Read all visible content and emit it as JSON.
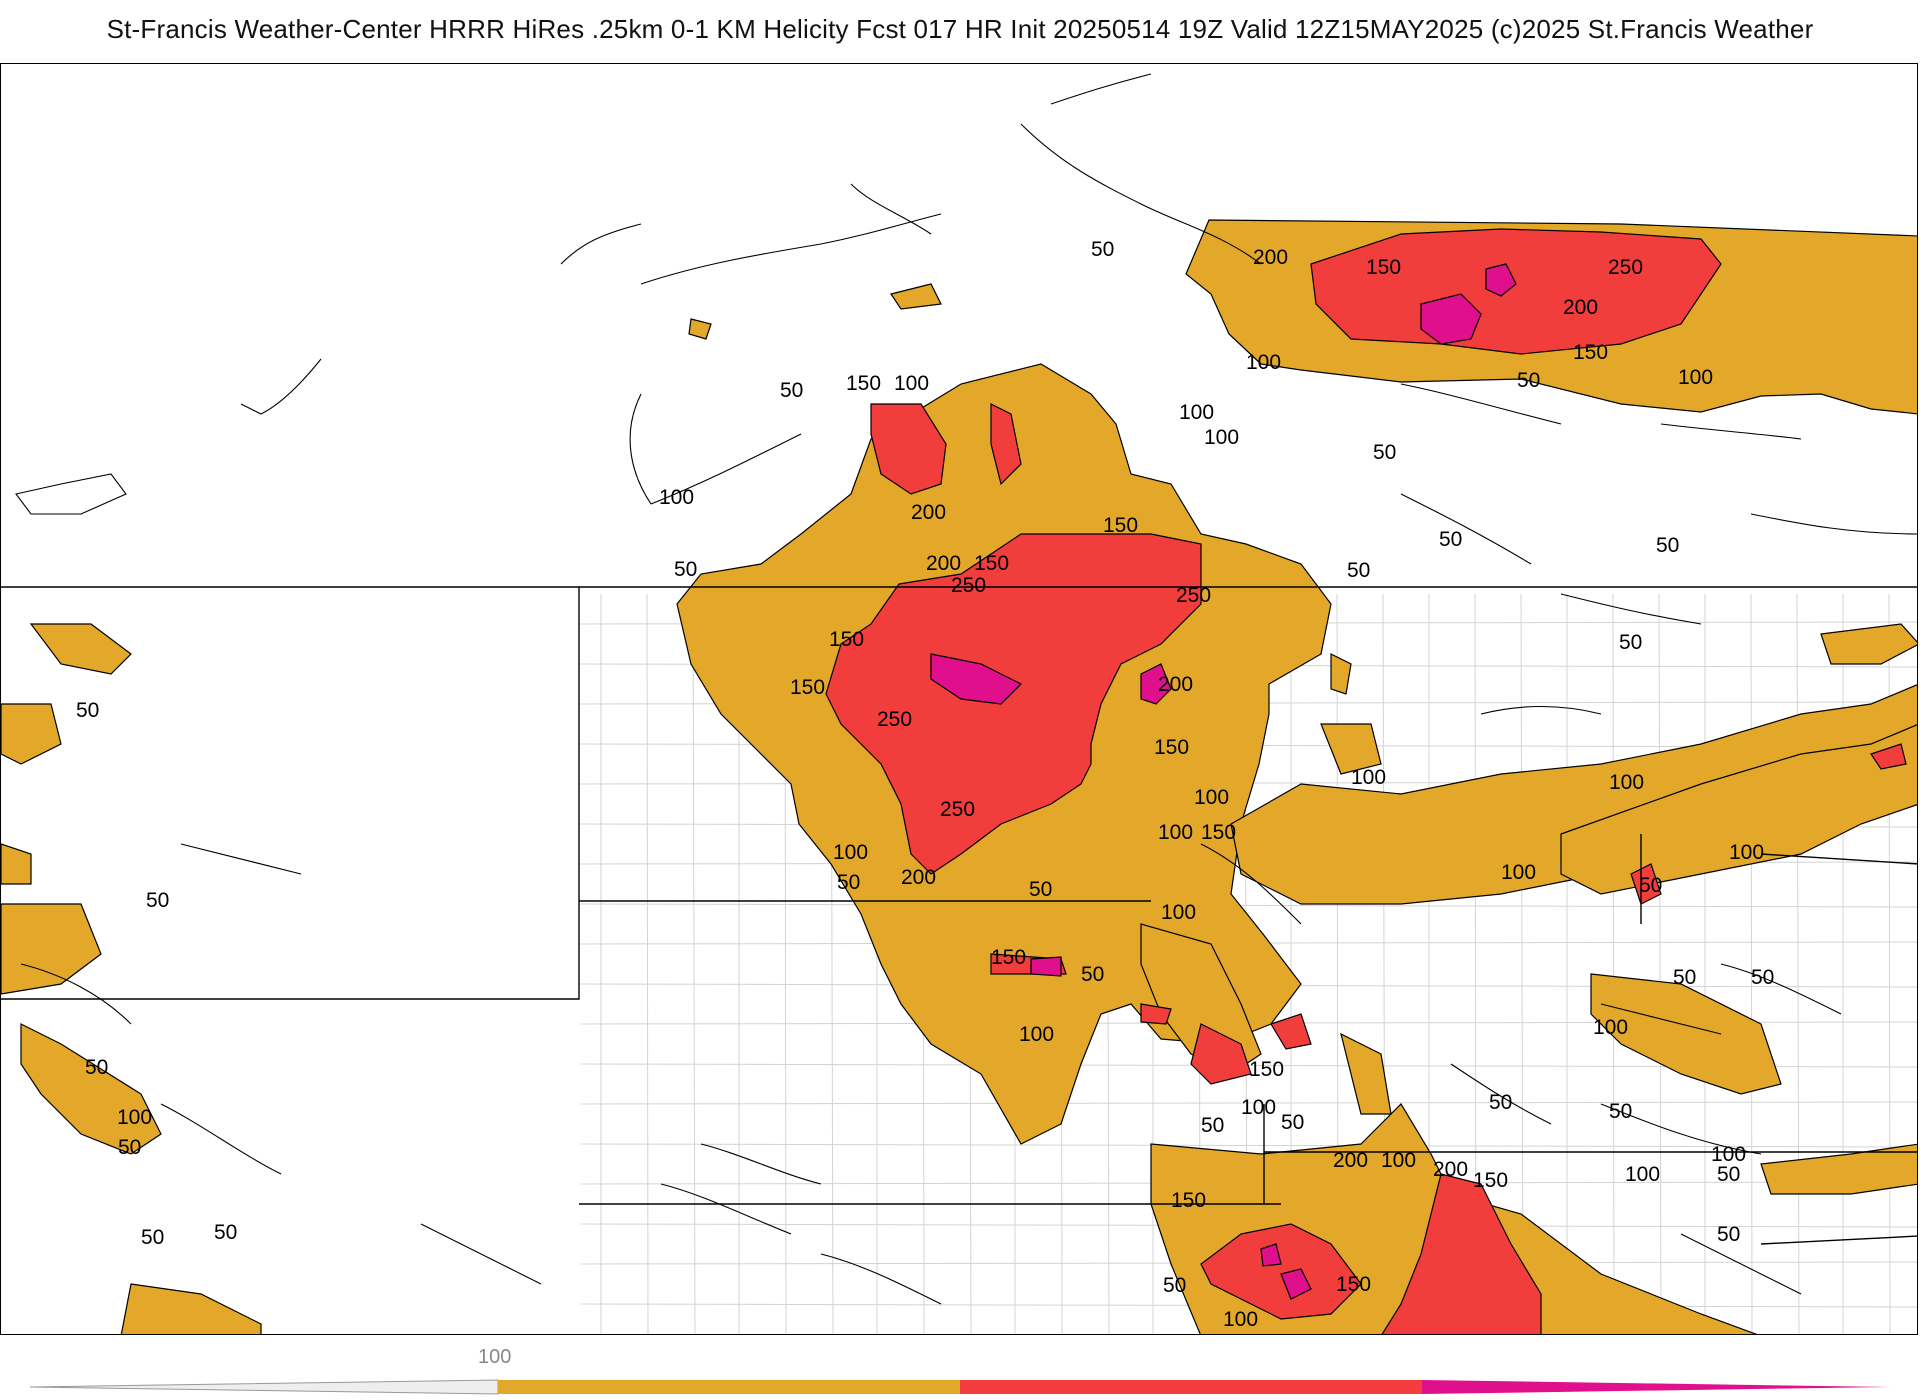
{
  "title": "St-Francis Weather-Center HRRR HiRes .25km 0-1 KM Helicity Fcst 017 HR Init 20250514 19Z  Valid 12Z15MAY2025    (c)2025 St.Francis Weather",
  "colors": {
    "band_100_150": "#e3a82a",
    "band_150_250": "#f23d3d",
    "band_250_plus": "#e0108c",
    "state_border": "#000000",
    "county_border": "#cfcfcf",
    "contour": "#000000"
  },
  "contour_labels": [
    "50",
    "100",
    "150",
    "200",
    "250"
  ],
  "colorbar": {
    "tick_label": "100",
    "segments": [
      "#e3a82a",
      "#f23d3d",
      "#e0108c"
    ]
  }
}
